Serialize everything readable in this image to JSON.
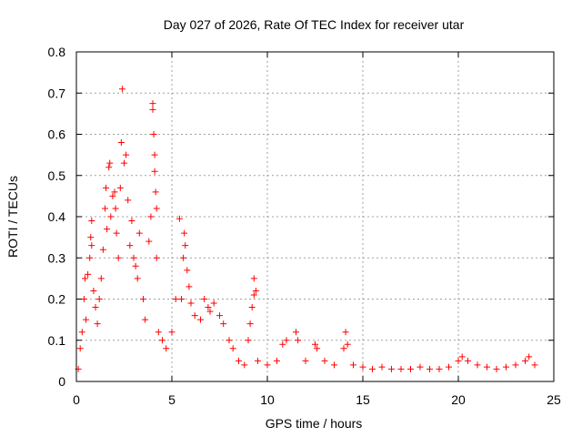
{
  "chart_data": {
    "type": "scatter",
    "title": "Day 027 of 2026, Rate Of TEC Index for receiver utar",
    "xlabel": "GPS time / hours",
    "ylabel": "ROTI / TECUs",
    "xlim": [
      0,
      25
    ],
    "ylim": [
      0,
      0.8
    ],
    "xticks": [
      0,
      5,
      10,
      15,
      20,
      25
    ],
    "yticks": [
      0,
      0.1,
      0.2,
      0.3,
      0.4,
      0.5,
      0.6,
      0.7,
      0.8
    ],
    "xtick_labels": [
      "0",
      "5",
      "10",
      "15",
      "20",
      "25"
    ],
    "ytick_labels": [
      "0",
      "0.1",
      "0.2",
      "0.3",
      "0.4",
      "0.5",
      "0.6",
      "0.7",
      "0.8"
    ],
    "grid": true,
    "legend": "none",
    "marker": "+",
    "color": "#ff0000",
    "x_data_range": [
      0,
      24
    ],
    "series": [
      {
        "points": [
          [
            0.1,
            0.03
          ],
          [
            0.2,
            0.08
          ],
          [
            0.3,
            0.12
          ],
          [
            0.4,
            0.2
          ],
          [
            0.45,
            0.25
          ],
          [
            0.5,
            0.15
          ],
          [
            0.6,
            0.26
          ],
          [
            0.7,
            0.3
          ],
          [
            0.75,
            0.35
          ],
          [
            0.8,
            0.33
          ],
          [
            0.8,
            0.39
          ],
          [
            0.9,
            0.22
          ],
          [
            1.0,
            0.18
          ],
          [
            1.1,
            0.14
          ],
          [
            1.2,
            0.2
          ],
          [
            1.3,
            0.25
          ],
          [
            1.4,
            0.32
          ],
          [
            1.5,
            0.42
          ],
          [
            1.55,
            0.47
          ],
          [
            1.6,
            0.37
          ],
          [
            1.7,
            0.52
          ],
          [
            1.75,
            0.53
          ],
          [
            1.8,
            0.4
          ],
          [
            1.9,
            0.45
          ],
          [
            2.0,
            0.46
          ],
          [
            2.05,
            0.42
          ],
          [
            2.1,
            0.36
          ],
          [
            2.2,
            0.3
          ],
          [
            2.3,
            0.47
          ],
          [
            2.35,
            0.58
          ],
          [
            2.4,
            0.71
          ],
          [
            2.5,
            0.53
          ],
          [
            2.6,
            0.55
          ],
          [
            2.7,
            0.44
          ],
          [
            2.8,
            0.33
          ],
          [
            2.9,
            0.39
          ],
          [
            3.0,
            0.3
          ],
          [
            3.1,
            0.28
          ],
          [
            3.2,
            0.25
          ],
          [
            3.3,
            0.36
          ],
          [
            3.5,
            0.2
          ],
          [
            3.6,
            0.15
          ],
          [
            3.8,
            0.34
          ],
          [
            3.9,
            0.4
          ],
          [
            4.0,
            0.66
          ],
          [
            4.0,
            0.675
          ],
          [
            4.05,
            0.6
          ],
          [
            4.1,
            0.55
          ],
          [
            4.1,
            0.51
          ],
          [
            4.15,
            0.46
          ],
          [
            4.2,
            0.42
          ],
          [
            4.2,
            0.3
          ],
          [
            4.3,
            0.12
          ],
          [
            4.5,
            0.1
          ],
          [
            4.7,
            0.08
          ],
          [
            5.0,
            0.12
          ],
          [
            5.2,
            0.2
          ],
          [
            5.4,
            0.395
          ],
          [
            5.5,
            0.2
          ],
          [
            5.6,
            0.3
          ],
          [
            5.65,
            0.36
          ],
          [
            5.7,
            0.33
          ],
          [
            5.8,
            0.27
          ],
          [
            5.9,
            0.23
          ],
          [
            6.0,
            0.19
          ],
          [
            6.2,
            0.16
          ],
          [
            6.5,
            0.15
          ],
          [
            6.7,
            0.2
          ],
          [
            6.9,
            0.18
          ],
          [
            7.0,
            0.17
          ],
          [
            7.2,
            0.19
          ],
          [
            7.5,
            0.16
          ],
          [
            7.7,
            0.14
          ],
          [
            8.0,
            0.1
          ],
          [
            8.2,
            0.08
          ],
          [
            8.5,
            0.05
          ],
          [
            8.8,
            0.04
          ],
          [
            9.0,
            0.1
          ],
          [
            9.1,
            0.14
          ],
          [
            9.2,
            0.18
          ],
          [
            9.3,
            0.21
          ],
          [
            9.3,
            0.25
          ],
          [
            9.4,
            0.22
          ],
          [
            9.5,
            0.05
          ],
          [
            10.0,
            0.04
          ],
          [
            10.5,
            0.05
          ],
          [
            10.8,
            0.09
          ],
          [
            11.0,
            0.1
          ],
          [
            11.5,
            0.12
          ],
          [
            11.6,
            0.1
          ],
          [
            12.0,
            0.05
          ],
          [
            12.5,
            0.09
          ],
          [
            12.6,
            0.08
          ],
          [
            13.0,
            0.05
          ],
          [
            13.5,
            0.04
          ],
          [
            14.0,
            0.08
          ],
          [
            14.1,
            0.12
          ],
          [
            14.2,
            0.09
          ],
          [
            14.5,
            0.04
          ],
          [
            15.0,
            0.035
          ],
          [
            15.5,
            0.03
          ],
          [
            16.0,
            0.035
          ],
          [
            16.5,
            0.03
          ],
          [
            17.0,
            0.03
          ],
          [
            17.5,
            0.03
          ],
          [
            18.0,
            0.035
          ],
          [
            18.5,
            0.03
          ],
          [
            19.0,
            0.03
          ],
          [
            19.5,
            0.035
          ],
          [
            20.0,
            0.05
          ],
          [
            20.2,
            0.06
          ],
          [
            20.5,
            0.05
          ],
          [
            21.0,
            0.04
          ],
          [
            21.5,
            0.035
          ],
          [
            22.0,
            0.03
          ],
          [
            22.5,
            0.035
          ],
          [
            23.0,
            0.04
          ],
          [
            23.5,
            0.05
          ],
          [
            23.7,
            0.06
          ],
          [
            24.0,
            0.04
          ]
        ]
      }
    ]
  }
}
